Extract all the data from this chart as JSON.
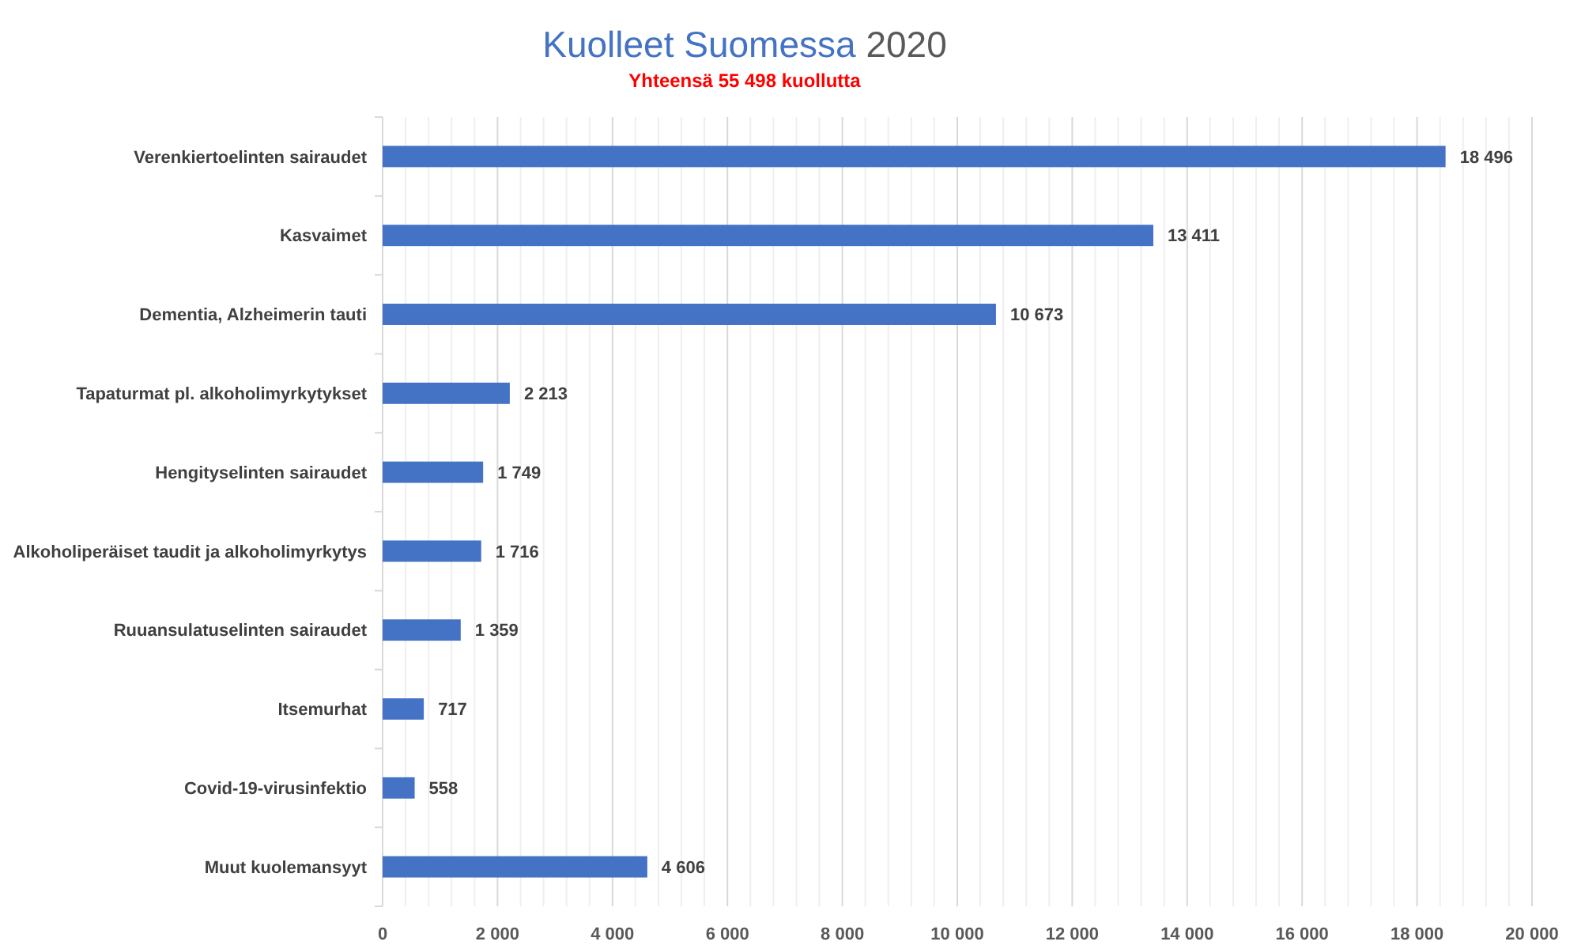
{
  "chart_data": {
    "type": "bar",
    "orientation": "horizontal",
    "title": "Kuolleet Suomessa 2020",
    "subtitle": "Yhteensä 55 498 kuollutta",
    "categories": [
      "Verenkiertoelinten sairaudet",
      "Kasvaimet",
      "Dementia, Alzheimerin tauti",
      "Tapaturmat pl. alkoholimyrkytykset",
      "Hengityselinten sairaudet",
      "Alkoholiperäiset taudit ja alkoholimyrkytys",
      "Ruuansulatuselinten sairaudet",
      "Itsemurhat",
      "Covid-19-virusinfektio",
      "Muut kuolemansyyt"
    ],
    "values": [
      18496,
      13411,
      10673,
      2213,
      1749,
      1716,
      1359,
      717,
      558,
      4606
    ],
    "value_labels": [
      "18 496",
      "13 411",
      "10 673",
      "2 213",
      "1 749",
      "1 716",
      "1 359",
      "717",
      "558",
      "4 606"
    ],
    "color": "#4472c4",
    "xlim": [
      0,
      20000
    ],
    "xticks": [
      0,
      {
        "value": 400,
        "label": null
      },
      {
        "value": 800,
        "label": null
      },
      {
        "value": 1200,
        "label": null
      },
      {
        "value": 1600,
        "label": null
      },
      {
        "value": 2000,
        "label": "2 000"
      },
      {
        "value": 2400,
        "label": null
      },
      {
        "value": 2800,
        "label": null
      },
      {
        "value": 3200,
        "label": null
      },
      {
        "value": 3600,
        "label": null
      },
      {
        "value": 4000,
        "label": "4 000"
      },
      {
        "value": 4400,
        "label": null
      },
      {
        "value": 4800,
        "label": null
      },
      {
        "value": 5200,
        "label": null
      },
      {
        "value": 5600,
        "label": null
      },
      {
        "value": 6000,
        "label": "6 000"
      },
      {
        "value": 6400,
        "label": null
      },
      {
        "value": 6800,
        "label": null
      },
      {
        "value": 7200,
        "label": null
      },
      {
        "value": 7600,
        "label": null
      },
      {
        "value": 8000,
        "label": "8 000"
      },
      {
        "value": 8400,
        "label": null
      },
      {
        "value": 8800,
        "label": null
      },
      {
        "value": 9200,
        "label": null
      },
      {
        "value": 9600,
        "label": null
      },
      {
        "value": 10000,
        "label": "10 000"
      },
      {
        "value": 10400,
        "label": null
      },
      {
        "value": 10800,
        "label": null
      },
      {
        "value": 11200,
        "label": null
      },
      {
        "value": 11600,
        "label": null
      },
      {
        "value": 12000,
        "label": "12 000"
      },
      {
        "value": 12400,
        "label": null
      },
      {
        "value": 12800,
        "label": null
      },
      {
        "value": 13200,
        "label": null
      },
      {
        "value": 13600,
        "label": null
      },
      {
        "value": 14000,
        "label": "14 000"
      },
      {
        "value": 14400,
        "label": null
      },
      {
        "value": 14800,
        "label": null
      },
      {
        "value": 15200,
        "label": null
      },
      {
        "value": 15600,
        "label": null
      },
      {
        "value": 16000,
        "label": "16 000"
      },
      {
        "value": 16400,
        "label": null
      },
      {
        "value": 16800,
        "label": null
      },
      {
        "value": 17200,
        "label": null
      },
      {
        "value": 17600,
        "label": null
      },
      {
        "value": 18000,
        "label": "18 000"
      },
      {
        "value": 18400,
        "label": null
      },
      {
        "value": 18800,
        "label": null
      },
      {
        "value": 19200,
        "label": null
      },
      {
        "value": 19600,
        "label": null
      },
      {
        "value": 20000,
        "label": "20 000"
      }
    ],
    "grid": "x"
  }
}
